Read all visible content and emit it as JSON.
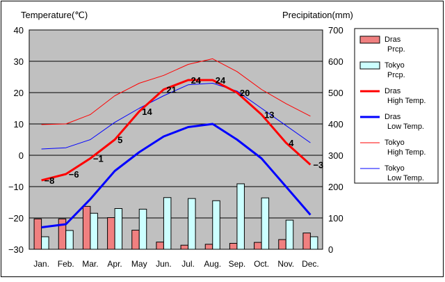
{
  "chart_data": {
    "type": "bar+line",
    "title": "",
    "left_axis_label": "Temperature(℃)",
    "right_axis_label": "Precipitation(mm)",
    "left_ylim": [
      -30,
      40
    ],
    "left_ticks": [
      "40",
      "30",
      "20",
      "10",
      "0",
      "−10",
      "−20",
      "−30"
    ],
    "right_ylim": [
      0,
      700
    ],
    "right_ticks": [
      "700",
      "600",
      "500",
      "400",
      "300",
      "200",
      "100",
      "0"
    ],
    "categories": [
      "Jan.",
      "Feb.",
      "Mar.",
      "Apr.",
      "May",
      "Jun.",
      "Jul.",
      "Aug.",
      "Sep.",
      "Oct.",
      "Nov.",
      "Dec."
    ],
    "grid": true,
    "legend_position": "right",
    "bar_series": [
      {
        "name": "Dras Prcp.",
        "legend_lines": [
          "Dras",
          "Prcp."
        ],
        "color": "#f08080",
        "values": [
          97,
          97,
          137,
          101,
          61,
          23,
          13,
          16,
          19,
          22,
          31,
          52
        ]
      },
      {
        "name": "Tokyo Prcp.",
        "legend_lines": [
          "Tokyo",
          "Prcp."
        ],
        "color": "#ccffff",
        "values": [
          40,
          60,
          115,
          130,
          128,
          165,
          162,
          155,
          209,
          164,
          93,
          40
        ]
      }
    ],
    "line_series": [
      {
        "name": "Dras High Temp.",
        "legend_lines": [
          "Dras",
          "High Temp."
        ],
        "color": "#ff0000",
        "width": 3,
        "values": [
          -8,
          -6,
          -1,
          5,
          14,
          21,
          24,
          24,
          20,
          13,
          4,
          -3
        ],
        "labels": [
          "−8",
          "−6",
          "−1",
          "5",
          "14",
          "21",
          "24",
          "24",
          "20",
          "13",
          "4",
          "−3"
        ]
      },
      {
        "name": "Dras Low Temp.",
        "legend_lines": [
          "Dras",
          "Low Temp."
        ],
        "color": "#0000ff",
        "width": 3,
        "values": [
          -23,
          -22,
          -14,
          -5,
          1,
          6,
          9,
          10,
          5,
          -1,
          -10,
          -19
        ]
      },
      {
        "name": "Tokyo High Temp.",
        "legend_lines": [
          "Tokyo",
          "High Temp."
        ],
        "color": "#ff0000",
        "width": 1,
        "values": [
          9.8,
          10,
          13,
          19,
          23,
          25.5,
          29,
          30.8,
          26.7,
          21,
          16.5,
          12.5
        ]
      },
      {
        "name": "Tokyo Low Temp.",
        "legend_lines": [
          "Tokyo",
          "Low Temp."
        ],
        "color": "#0000ff",
        "width": 1,
        "values": [
          2,
          2.4,
          5,
          10.5,
          15,
          19,
          22.5,
          23,
          20.5,
          15,
          9.5,
          4
        ]
      }
    ]
  }
}
